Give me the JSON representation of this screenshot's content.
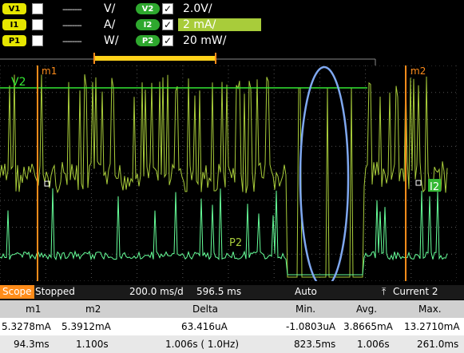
{
  "legend": {
    "rows": [
      {
        "chan": "V1",
        "dashes": "--------",
        "unit": "V/",
        "chan2": "V2",
        "scale": "2.0V/"
      },
      {
        "chan": "I1",
        "dashes": "--------",
        "unit": "A/",
        "chan2": "I2",
        "scale": "2 mA/"
      },
      {
        "chan": "P1",
        "dashes": "--------",
        "unit": "W/",
        "chan2": "P2",
        "scale": "20 mW/"
      }
    ],
    "checkmark": "✓"
  },
  "plot": {
    "marker1_label": "m1",
    "marker2_label": "m2",
    "v2_label": "V2",
    "i2_label": "I2",
    "p2_label": "P2",
    "colors": {
      "v2": "#33e633",
      "i2": "#a8cc3a",
      "p2": "#66ff99",
      "marker": "#ff8c1a",
      "grid": "#555555",
      "annotation": "#7fa8f0"
    }
  },
  "status": {
    "mode": "Scope",
    "state": "Stopped",
    "timebase": "200.0 ms/d",
    "offset": "596.5 ms",
    "trigger": "Auto",
    "trigger_source": "Current 2"
  },
  "table": {
    "headers": [
      "m1",
      "m2",
      "Delta",
      "Min.",
      "Avg.",
      "Max."
    ],
    "row1": [
      "5.3278mA",
      "5.3912mA",
      "63.416uA",
      "-1.0803uA",
      "3.8665mA",
      "13.2710mA"
    ],
    "row2": [
      "94.3ms",
      "1.100s",
      "1.006s ( 1.0Hz)",
      "823.5ms",
      "1.006s",
      "261.0ms"
    ]
  }
}
